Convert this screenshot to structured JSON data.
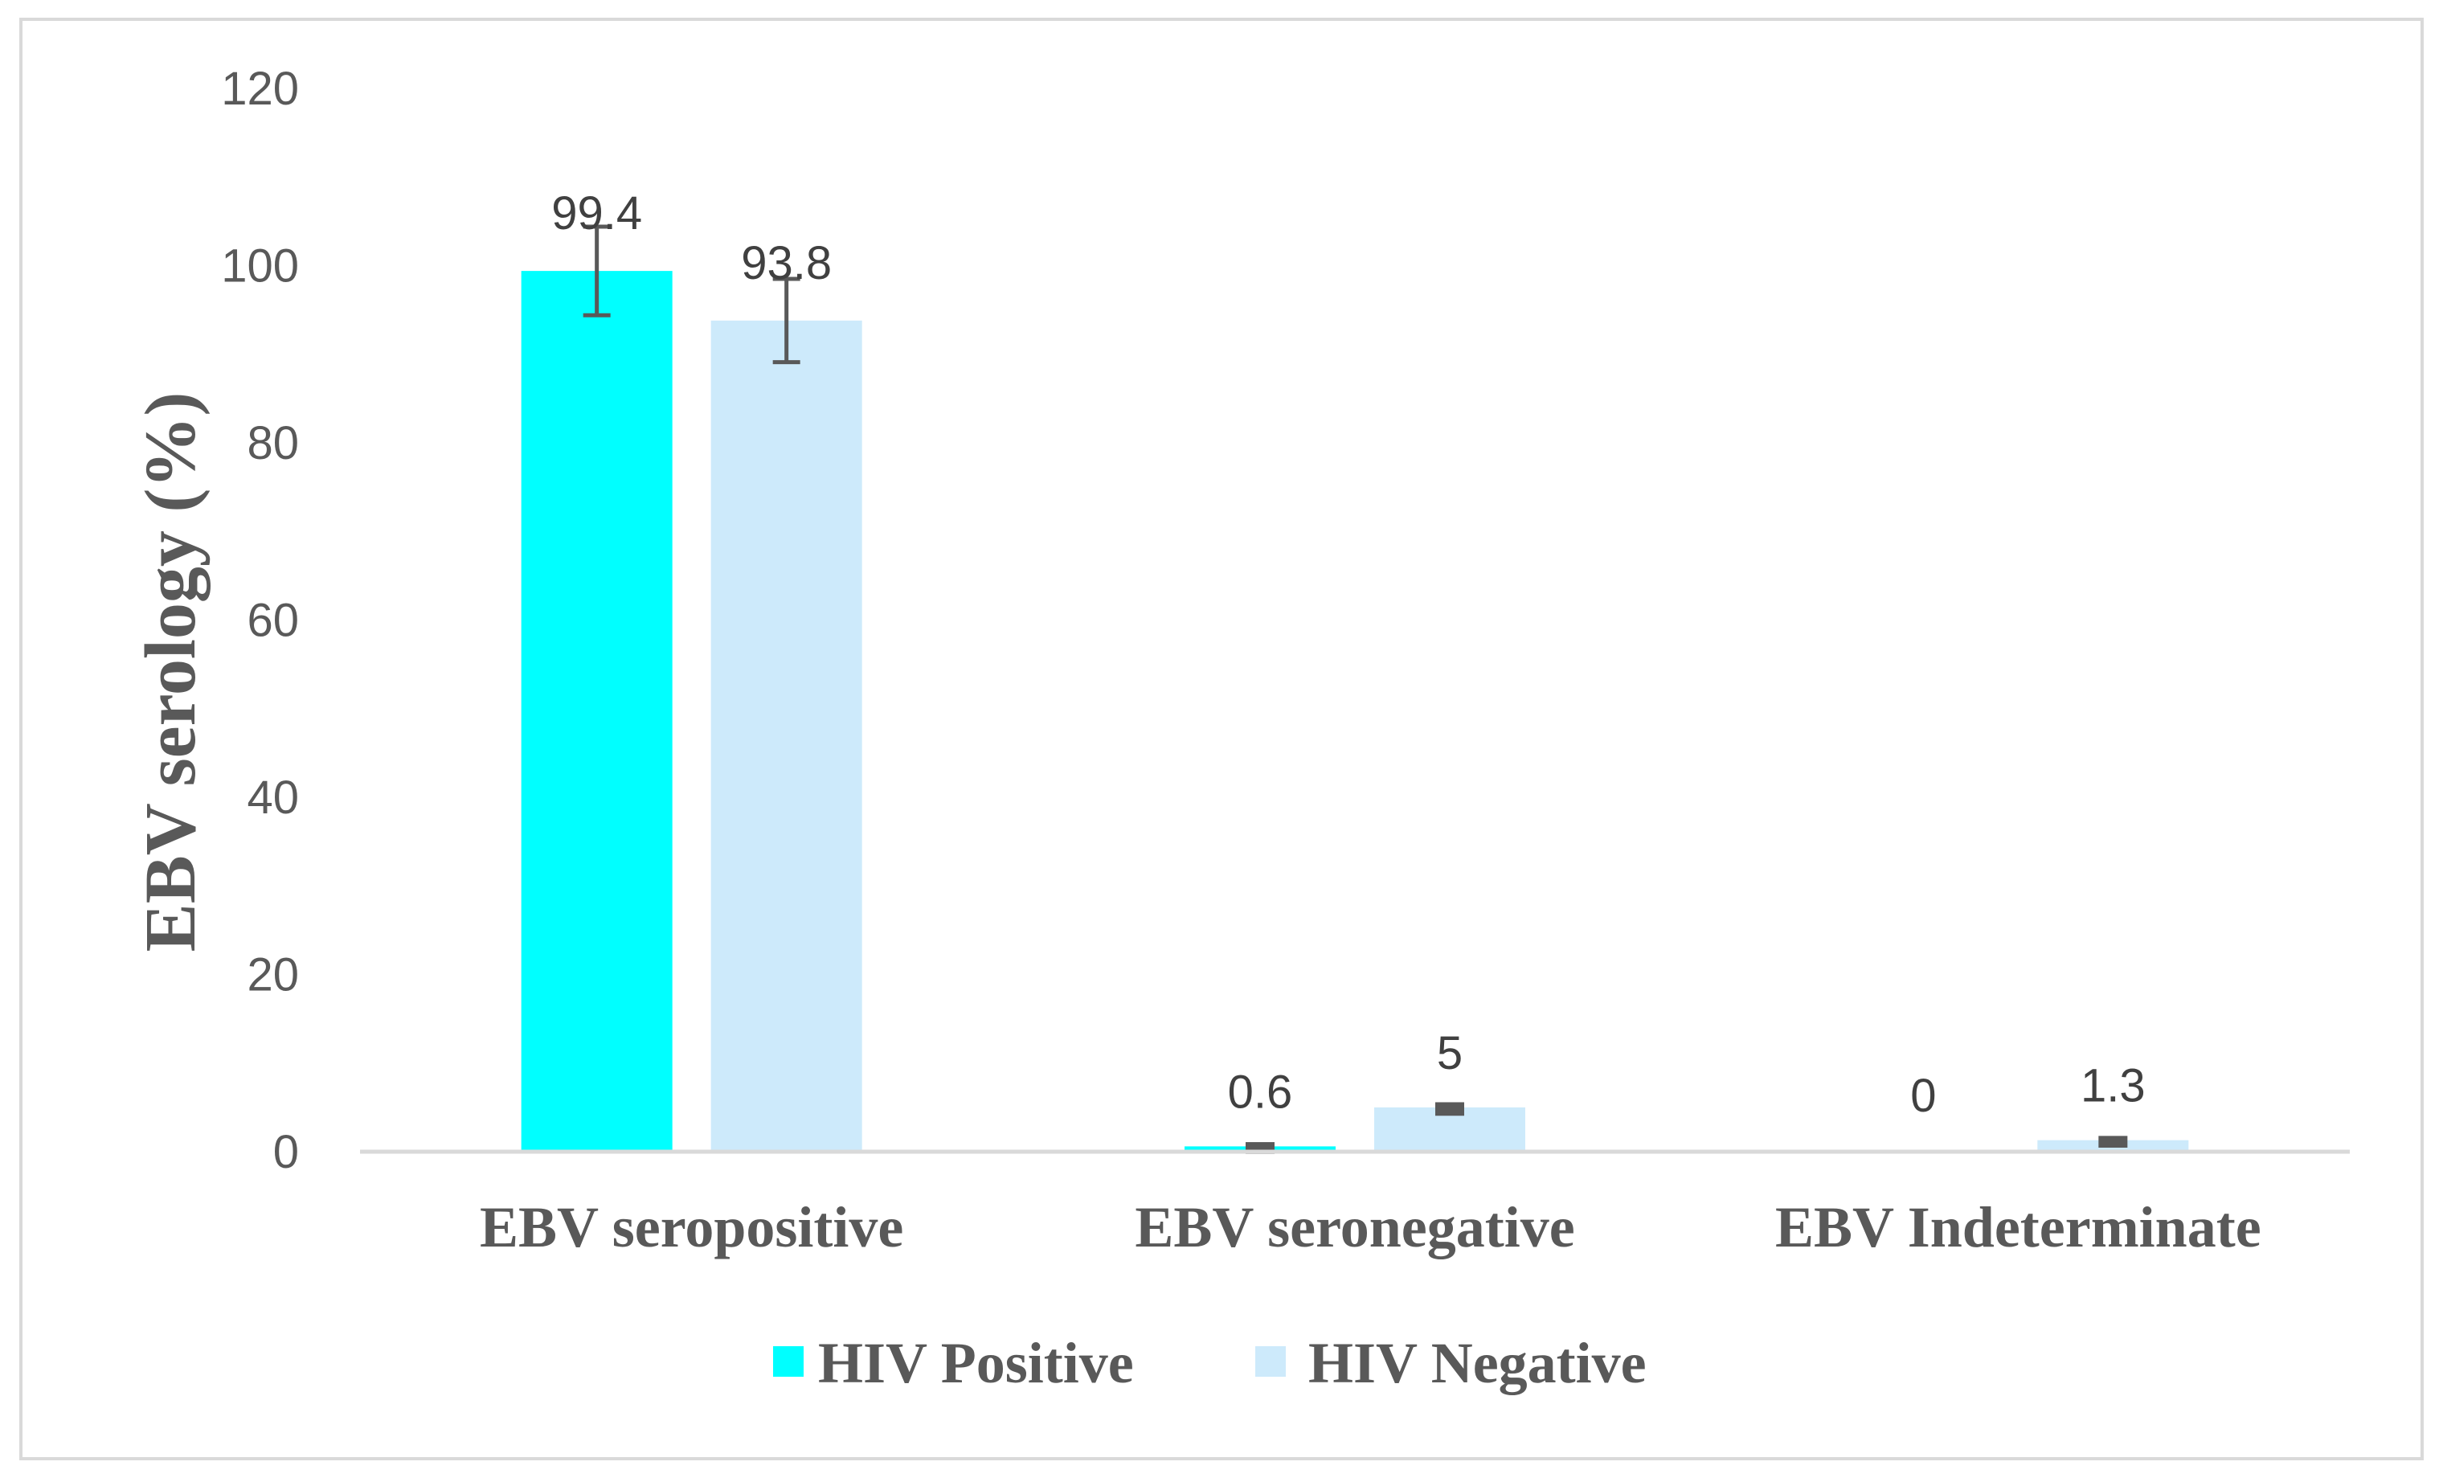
{
  "chart_data": {
    "type": "bar",
    "title": "",
    "xlabel": "",
    "ylabel": "EBV serology (%)",
    "ylim": [
      0,
      120
    ],
    "yticks": [
      0,
      20,
      40,
      60,
      80,
      100,
      120
    ],
    "ytick_labels": [
      "0",
      "20",
      "40",
      "60",
      "80",
      "100",
      "120"
    ],
    "grid": false,
    "legend_position": "bottom",
    "categories": [
      "EBV seropositive",
      "EBV  seronegative",
      "EBV Indeterminate"
    ],
    "series": [
      {
        "name": "HIV Positive",
        "color": "#00ffff",
        "values": [
          99.4,
          0.6,
          0
        ],
        "value_labels": [
          "99.4",
          "0.6",
          "0"
        ],
        "error": [
          5,
          0.3,
          0
        ]
      },
      {
        "name": "HIV Negative",
        "color": "#cdeafb",
        "values": [
          93.8,
          5,
          1.3
        ],
        "value_labels": [
          "93.8",
          "5",
          "1.3"
        ],
        "error": [
          4.7,
          0.4,
          0.3
        ]
      }
    ],
    "error_bar_color": "#595959"
  }
}
